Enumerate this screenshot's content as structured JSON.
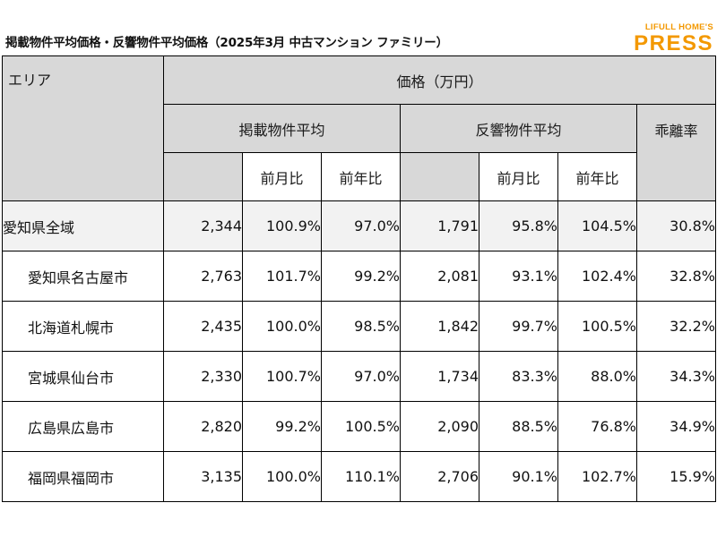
{
  "header": {
    "title": "掲載物件平均価格・反響物件平均価格（2025年3月 中古マンション ファミリー）",
    "logo_sub": "LIFULL HOME'S",
    "logo_main": "PRESS"
  },
  "table": {
    "area_header": "エリア",
    "price_header": "価格（万円）",
    "listing_group": "掲載物件平均",
    "response_group": "反響物件平均",
    "divergence_header": "乖離率",
    "mom_header": "前月比",
    "yoy_header": "前年比",
    "rows": [
      {
        "area": "愛知県全域",
        "listing": "2,344",
        "listing_mom": "100.9%",
        "listing_yoy": "97.0%",
        "response": "1,791",
        "response_mom": "95.8%",
        "response_yoy": "104.5%",
        "divergence": "30.8%"
      },
      {
        "area": "愛知県名古屋市",
        "listing": "2,763",
        "listing_mom": "101.7%",
        "listing_yoy": "99.2%",
        "response": "2,081",
        "response_mom": "93.1%",
        "response_yoy": "102.4%",
        "divergence": "32.8%"
      },
      {
        "area": "北海道札幌市",
        "listing": "2,435",
        "listing_mom": "100.0%",
        "listing_yoy": "98.5%",
        "response": "1,842",
        "response_mom": "99.7%",
        "response_yoy": "100.5%",
        "divergence": "32.2%"
      },
      {
        "area": "宮城県仙台市",
        "listing": "2,330",
        "listing_mom": "100.7%",
        "listing_yoy": "97.0%",
        "response": "1,734",
        "response_mom": "83.3%",
        "response_yoy": "88.0%",
        "divergence": "34.3%"
      },
      {
        "area": "広島県広島市",
        "listing": "2,820",
        "listing_mom": "99.2%",
        "listing_yoy": "100.5%",
        "response": "2,090",
        "response_mom": "88.5%",
        "response_yoy": "76.8%",
        "divergence": "34.9%"
      },
      {
        "area": "福岡県福岡市",
        "listing": "3,135",
        "listing_mom": "100.0%",
        "listing_yoy": "110.1%",
        "response": "2,706",
        "response_mom": "90.1%",
        "response_yoy": "102.7%",
        "divergence": "15.9%"
      }
    ]
  }
}
